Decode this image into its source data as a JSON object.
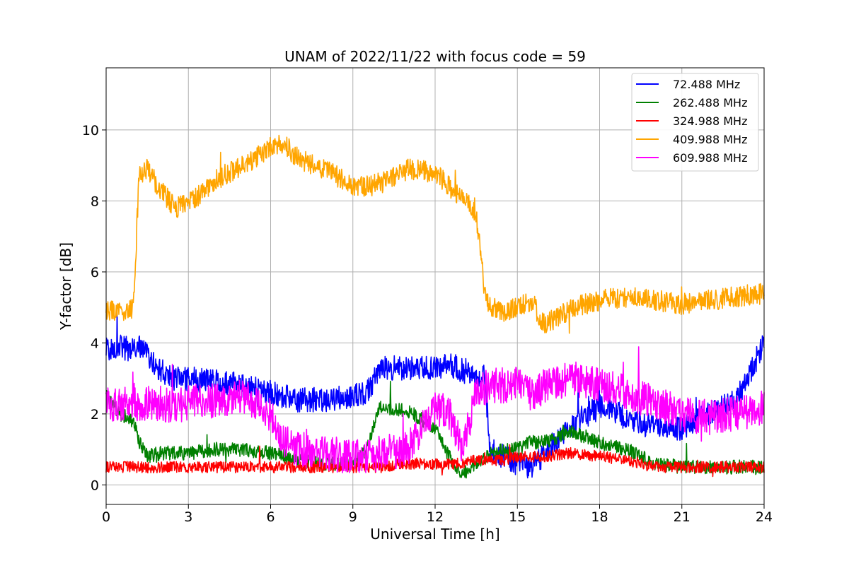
{
  "chart_data": {
    "type": "line",
    "title": "UNAM of 2022/11/22 with focus code = 59",
    "xlabel": "Universal Time [h]",
    "ylabel": "Y-factor [dB]",
    "xlim": [
      0,
      24
    ],
    "ylim": [
      -0.55,
      11.75
    ],
    "xticks": [
      0,
      3,
      6,
      9,
      12,
      15,
      18,
      21,
      24
    ],
    "yticks": [
      0,
      2,
      4,
      6,
      8,
      10
    ],
    "grid": true,
    "legend_position": "top-right",
    "x": [
      0,
      0.5,
      1,
      1.2,
      1.5,
      2,
      2.5,
      3,
      4,
      5,
      6,
      6.5,
      7,
      8,
      9,
      9.5,
      10,
      11,
      12,
      12.5,
      13,
      13.5,
      13.8,
      14,
      14.5,
      15,
      15.5,
      16,
      17,
      18,
      19,
      20,
      21,
      22,
      23,
      24
    ],
    "series": [
      {
        "name": " 72.488 MHz",
        "color": "#0000ff",
        "noise": 0.35,
        "values": [
          3.8,
          3.9,
          3.8,
          3.9,
          3.7,
          3.2,
          3.0,
          3.0,
          2.9,
          2.8,
          2.6,
          2.5,
          2.4,
          2.4,
          2.5,
          2.6,
          3.3,
          3.3,
          3.3,
          3.4,
          3.2,
          3.0,
          3.2,
          1.0,
          0.8,
          0.6,
          0.5,
          0.9,
          1.7,
          2.2,
          1.9,
          1.6,
          1.6,
          2.0,
          2.4,
          4.0
        ]
      },
      {
        "name": "262.488 MHz",
        "color": "#008000",
        "noise": 0.2,
        "values": [
          2.5,
          2.0,
          1.8,
          1.2,
          0.8,
          0.9,
          0.9,
          0.9,
          1.0,
          1.0,
          0.9,
          0.8,
          0.7,
          0.6,
          0.6,
          1.0,
          2.2,
          2.1,
          1.6,
          0.8,
          0.3,
          0.6,
          0.8,
          0.9,
          1.0,
          1.0,
          1.2,
          1.2,
          1.5,
          1.2,
          1.0,
          0.6,
          0.5,
          0.5,
          0.5,
          0.5
        ]
      },
      {
        "name": "324.988 MHz",
        "color": "#ff0000",
        "noise": 0.16,
        "values": [
          0.5,
          0.5,
          0.5,
          0.5,
          0.5,
          0.5,
          0.5,
          0.5,
          0.5,
          0.5,
          0.5,
          0.5,
          0.5,
          0.5,
          0.5,
          0.5,
          0.5,
          0.6,
          0.6,
          0.6,
          0.6,
          0.7,
          0.7,
          0.7,
          0.7,
          0.8,
          0.8,
          0.8,
          0.9,
          0.8,
          0.7,
          0.5,
          0.5,
          0.5,
          0.5,
          0.5
        ]
      },
      {
        "name": "409.988 MHz",
        "color": "#ffa500",
        "noise": 0.3,
        "values": [
          4.9,
          4.9,
          5.0,
          8.7,
          8.9,
          8.3,
          7.8,
          7.9,
          8.6,
          9.0,
          9.5,
          9.6,
          9.2,
          8.9,
          8.4,
          8.4,
          8.5,
          8.9,
          8.8,
          8.4,
          8.1,
          7.6,
          5.5,
          5.0,
          4.9,
          5.0,
          5.2,
          4.5,
          5.0,
          5.2,
          5.3,
          5.2,
          5.1,
          5.2,
          5.3,
          5.4
        ]
      },
      {
        "name": "609.988 MHz",
        "color": "#ff00ff",
        "noise": 0.5,
        "values": [
          2.3,
          2.2,
          2.4,
          2.2,
          2.3,
          2.3,
          2.2,
          2.3,
          2.4,
          2.5,
          2.0,
          1.2,
          1.0,
          0.9,
          0.8,
          0.8,
          0.9,
          1.0,
          2.2,
          2.0,
          1.0,
          2.6,
          2.7,
          2.8,
          2.8,
          2.9,
          2.5,
          2.8,
          3.0,
          2.8,
          2.6,
          2.3,
          2.0,
          1.9,
          2.0,
          2.2
        ]
      }
    ]
  }
}
